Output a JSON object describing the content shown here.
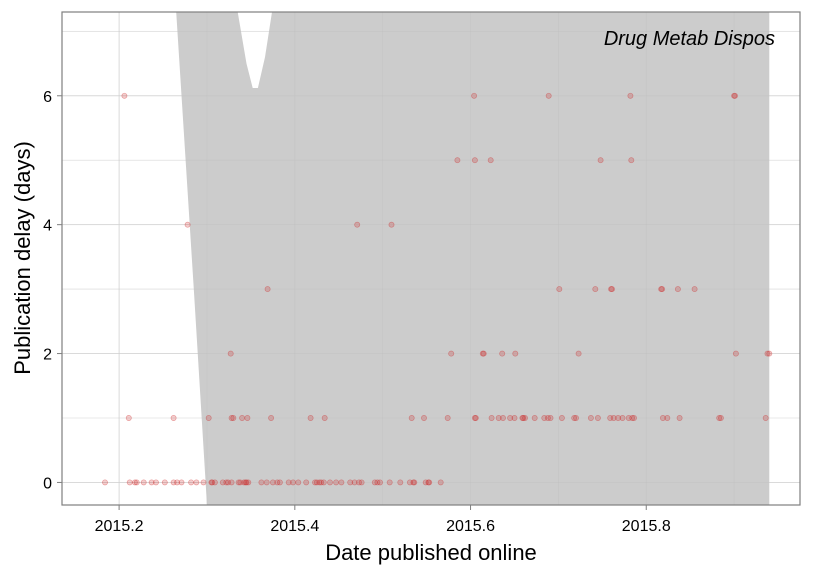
{
  "chart_data": {
    "type": "scatter",
    "title": "",
    "annotation": "Drug Metab Dispos",
    "xlabel": "Date published online",
    "ylabel": "Publication delay (days)",
    "xlim": [
      2015.135,
      2015.975
    ],
    "ylim": [
      -0.35,
      7.3
    ],
    "x_ticks": [
      2015.2,
      2015.4,
      2015.6,
      2015.8
    ],
    "x_tick_labels": [
      "2015.2",
      "2015.4",
      "2015.6",
      "2015.8"
    ],
    "y_ticks": [
      0,
      2,
      4,
      6
    ],
    "y_tick_labels": [
      "0",
      "2",
      "4",
      "6"
    ],
    "grid": true,
    "point_color": "#cc2222",
    "band_color": "#cccccc",
    "confidence_band": {
      "upper": [
        [
          2015.265,
          7.3
        ],
        [
          2015.335,
          7.3
        ],
        [
          2015.345,
          6.5
        ],
        [
          2015.352,
          6.12
        ],
        [
          2015.358,
          6.12
        ],
        [
          2015.366,
          6.6
        ],
        [
          2015.374,
          7.3
        ],
        [
          2015.94,
          7.3
        ]
      ],
      "lower": [
        [
          2015.265,
          7.3
        ],
        [
          2015.285,
          3.0
        ],
        [
          2015.3,
          -0.35
        ],
        [
          2015.94,
          -0.35
        ]
      ]
    },
    "x": [
      2015.184,
      2015.206,
      2015.211,
      2015.212,
      2015.218,
      2015.22,
      2015.228,
      2015.237,
      2015.242,
      2015.252,
      2015.262,
      2015.262,
      2015.266,
      2015.271,
      2015.278,
      2015.282,
      2015.288,
      2015.296,
      2015.302,
      2015.305,
      2015.306,
      2015.309,
      2015.318,
      2015.322,
      2015.324,
      2015.327,
      2015.328,
      2015.328,
      2015.33,
      2015.336,
      2015.338,
      2015.34,
      2015.342,
      2015.344,
      2015.345,
      2015.346,
      2015.347,
      2015.362,
      2015.368,
      2015.369,
      2015.373,
      2015.375,
      2015.38,
      2015.383,
      2015.393,
      2015.398,
      2015.404,
      2015.413,
      2015.418,
      2015.423,
      2015.425,
      2015.428,
      2015.43,
      2015.433,
      2015.434,
      2015.44,
      2015.447,
      2015.453,
      2015.463,
      2015.468,
      2015.471,
      2015.473,
      2015.476,
      2015.491,
      2015.494,
      2015.497,
      2015.508,
      2015.51,
      2015.52,
      2015.531,
      2015.533,
      2015.535,
      2015.536,
      2015.547,
      2015.549,
      2015.552,
      2015.553,
      2015.566,
      2015.574,
      2015.578,
      2015.585,
      2015.604,
      2015.605,
      2015.605,
      2015.606,
      2015.614,
      2015.615,
      2015.623,
      2015.624,
      2015.632,
      2015.636,
      2015.637,
      2015.645,
      2015.65,
      2015.651,
      2015.659,
      2015.66,
      2015.662,
      2015.673,
      2015.684,
      2015.688,
      2015.689,
      2015.691,
      2015.701,
      2015.704,
      2015.718,
      2015.72,
      2015.723,
      2015.737,
      2015.742,
      2015.745,
      2015.748,
      2015.759,
      2015.76,
      2015.761,
      2015.763,
      2015.768,
      2015.773,
      2015.78,
      2015.782,
      2015.783,
      2015.784,
      2015.786,
      2015.817,
      2015.818,
      2015.819,
      2015.824,
      2015.836,
      2015.838,
      2015.855,
      2015.883,
      2015.885,
      2015.9,
      2015.901,
      2015.902,
      2015.936,
      2015.938,
      2015.94
    ],
    "y": [
      0,
      6,
      1,
      0,
      0,
      0,
      0,
      0,
      0,
      0,
      0,
      1,
      0,
      0,
      4,
      0,
      0,
      0,
      1,
      0,
      0,
      0,
      0,
      0,
      0,
      2,
      0,
      1,
      1,
      0,
      0,
      1,
      0,
      0,
      0,
      1,
      0,
      0,
      0,
      3,
      1,
      0,
      0,
      0,
      0,
      0,
      0,
      0,
      1,
      0,
      0,
      0,
      0,
      0,
      1,
      0,
      0,
      0,
      0,
      0,
      4,
      0,
      0,
      0,
      0,
      0,
      0,
      4,
      0,
      0,
      1,
      0,
      0,
      1,
      0,
      0,
      0,
      0,
      1,
      2,
      5,
      6,
      5,
      1,
      1,
      2,
      2,
      5,
      1,
      1,
      2,
      1,
      1,
      1,
      2,
      1,
      1,
      1,
      1,
      1,
      1,
      6,
      1,
      3,
      1,
      1,
      1,
      2,
      1,
      3,
      1,
      5,
      1,
      3,
      3,
      1,
      1,
      1,
      1,
      6,
      5,
      1,
      1,
      3,
      3,
      1,
      1,
      3,
      1,
      3,
      1,
      1,
      6,
      6,
      2,
      1,
      2,
      2
    ]
  }
}
